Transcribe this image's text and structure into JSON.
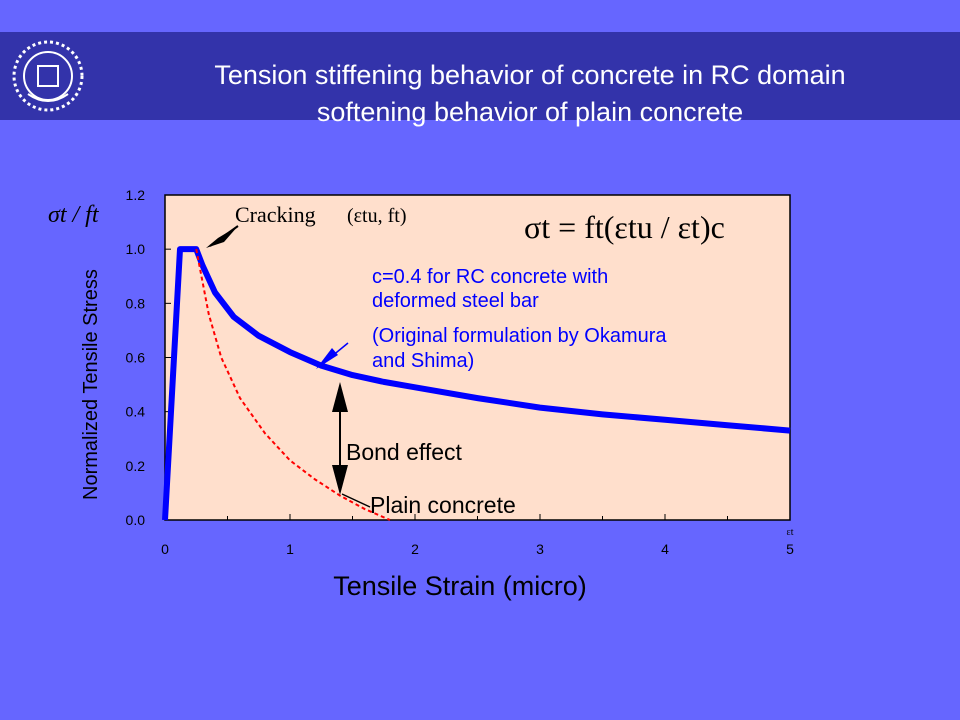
{
  "slide": {
    "title_line1": "Tension stiffening behavior of concrete in RC domain",
    "title_line2": "softening behavior of plain concrete",
    "logo_icon": "university-emblem-icon"
  },
  "chart_data": {
    "type": "line",
    "xlabel": "Tensile Strain (micro)",
    "ylabel": "Normalized Tensile Stress",
    "ylabel_symbol": "σt / ft",
    "x_end_symbol": "εt",
    "xlim": [
      0,
      5
    ],
    "ylim": [
      0.0,
      1.2
    ],
    "xticks": [
      "0",
      "1",
      "2",
      "3",
      "4",
      "5"
    ],
    "yticks": [
      "0.0",
      "0.2",
      "0.4",
      "0.6",
      "0.8",
      "1.0",
      "1.2"
    ],
    "plot_background": "#ffdfcc",
    "series": [
      {
        "color": "#0000ff",
        "style": "solid-thick",
        "x": [
          0,
          0.12,
          0.25,
          0.3,
          0.4,
          0.55,
          0.75,
          1.0,
          1.25,
          1.5,
          1.75,
          2.0,
          2.5,
          3.0,
          3.5,
          4.0,
          4.5,
          5.0
        ],
        "y": [
          0,
          1.0,
          1.0,
          0.94,
          0.84,
          0.75,
          0.68,
          0.62,
          0.57,
          0.535,
          0.51,
          0.49,
          0.45,
          0.415,
          0.39,
          0.37,
          0.35,
          0.33
        ]
      },
      {
        "color": "#ff0000",
        "style": "dotted",
        "x": [
          0.25,
          0.35,
          0.45,
          0.6,
          0.8,
          1.0,
          1.2,
          1.4,
          1.6,
          1.8
        ],
        "y": [
          1.0,
          0.76,
          0.6,
          0.45,
          0.32,
          0.22,
          0.15,
          0.09,
          0.04,
          0.0
        ]
      }
    ],
    "annotations": {
      "cracking_label": "Cracking",
      "cracking_args": "(εtu, ft)",
      "formula": "σt = ft(εtu / εt)c",
      "blue_note_1": "c=0.4 for RC concrete with",
      "blue_note_2": "deformed steel bar",
      "blue_note_3": "(Original formulation by Okamura",
      "blue_note_4": "and Shima)",
      "bond_effect": "Bond effect",
      "plain_concrete": "Plain concrete"
    }
  }
}
